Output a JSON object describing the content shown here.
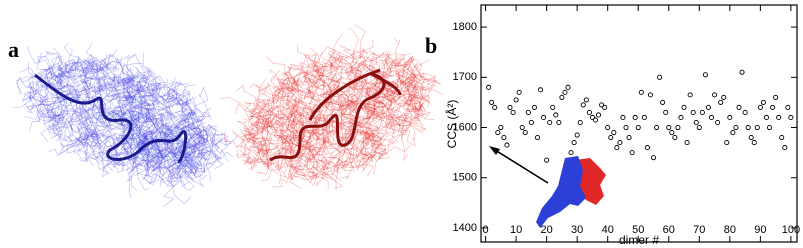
{
  "panel_labels": [
    "a",
    "b"
  ],
  "chart_data": {
    "type": "scatter",
    "x_label": "dimer #",
    "y_label": "CCS (Å²)",
    "x": [
      1,
      2,
      3,
      4,
      5,
      6,
      7,
      8,
      9,
      10,
      11,
      12,
      13,
      14,
      15,
      16,
      17,
      18,
      19,
      20,
      21,
      22,
      23,
      24,
      25,
      26,
      27,
      28,
      29,
      30,
      31,
      32,
      33,
      34,
      35,
      36,
      37,
      38,
      39,
      40,
      41,
      42,
      43,
      44,
      45,
      46,
      47,
      48,
      49,
      50,
      51,
      52,
      53,
      54,
      55,
      56,
      57,
      58,
      59,
      60,
      61,
      62,
      63,
      64,
      65,
      66,
      67,
      68,
      69,
      70,
      71,
      72,
      73,
      74,
      75,
      76,
      77,
      78,
      79,
      80,
      81,
      82,
      83,
      84,
      85,
      86,
      87,
      88,
      89,
      90,
      91,
      92,
      93,
      94,
      95,
      96,
      97,
      98,
      99,
      100
    ],
    "series": [
      {
        "color": "#000000",
        "values": [
          1680,
          1650,
          1640,
          1590,
          1600,
          1580,
          1565,
          1640,
          1630,
          1655,
          1670,
          1600,
          1590,
          1630,
          1610,
          1640,
          1580,
          1675,
          1620,
          1535,
          1610,
          1640,
          1625,
          1610,
          1660,
          1670,
          1680,
          1550,
          1570,
          1585,
          1610,
          1645,
          1655,
          1630,
          1620,
          1615,
          1625,
          1645,
          1640,
          1600,
          1580,
          1590,
          1560,
          1570,
          1620,
          1600,
          1580,
          1550,
          1620,
          1600,
          1670,
          1620,
          1560,
          1665,
          1540,
          1600,
          1700,
          1650,
          1630,
          1600,
          1590,
          1580,
          1600,
          1620,
          1640,
          1570,
          1665,
          1630,
          1610,
          1600,
          1630,
          1705,
          1640,
          1620,
          1665,
          1610,
          1650,
          1660,
          1570,
          1620,
          1590,
          1600,
          1640,
          1710,
          1630,
          1600,
          1580,
          1570,
          1600,
          1640,
          1650,
          1620,
          1600,
          1640,
          1660,
          1620,
          1580,
          1560,
          1640,
          1620
        ]
      }
    ],
    "xlim": [
      -1.5,
      102
    ],
    "ylim": [
      1372,
      1844
    ],
    "xticks": [
      0,
      10,
      20,
      30,
      40,
      50,
      60,
      70,
      80,
      90,
      100
    ],
    "yticks": [
      1400,
      1500,
      1600,
      1700,
      1800
    ]
  }
}
